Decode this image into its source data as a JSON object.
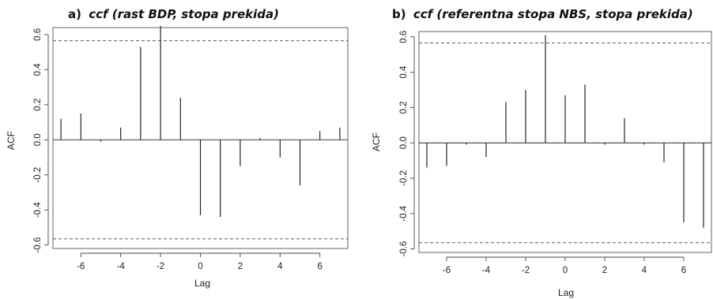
{
  "chart_data": [
    {
      "type": "bar",
      "panel": "a)",
      "title": "ccf (rast BDP, stopa prekida)",
      "xlabel": "Lag",
      "ylabel": "ACF",
      "xlim": [
        -7.4,
        7.4
      ],
      "ylim": [
        -0.62,
        0.64
      ],
      "xticks": [
        -6,
        -4,
        -2,
        0,
        2,
        4,
        6
      ],
      "xtick_labels": [
        "-6",
        "-4",
        "-2",
        "0",
        "2",
        "4",
        "6"
      ],
      "yticks": [
        -0.6,
        -0.4,
        -0.2,
        0.0,
        0.2,
        0.4,
        0.6
      ],
      "ytick_labels": [
        "-0.6",
        "-0.4",
        "-0.2",
        "0.0",
        "0.2",
        "0.4",
        "0.6"
      ],
      "confidence_bounds": [
        0.565,
        -0.565
      ],
      "x": [
        -7,
        -6,
        -5,
        -4,
        -3,
        -2,
        -1,
        0,
        1,
        2,
        3,
        4,
        5,
        6,
        7
      ],
      "values": [
        0.12,
        0.15,
        -0.01,
        0.07,
        0.53,
        0.65,
        0.24,
        -0.43,
        -0.44,
        -0.15,
        0.01,
        -0.1,
        -0.26,
        0.05,
        0.07
      ]
    },
    {
      "type": "bar",
      "panel": "b)",
      "title": "ccf (referentna stopa NBS, stopa prekida)",
      "xlabel": "Lag",
      "ylabel": "ACF",
      "xlim": [
        -7.4,
        7.4
      ],
      "ylim": [
        -0.62,
        0.63
      ],
      "xticks": [
        -6,
        -4,
        -2,
        0,
        2,
        4,
        6
      ],
      "xtick_labels": [
        "-6",
        "-4",
        "-2",
        "0",
        "2",
        "4",
        "6"
      ],
      "yticks": [
        -0.6,
        -0.4,
        -0.2,
        0.0,
        0.2,
        0.4,
        0.6
      ],
      "ytick_labels": [
        "-0.6",
        "-0.4",
        "-0.2",
        "0.0",
        "0.2",
        "0.4",
        "0.6"
      ],
      "confidence_bounds": [
        0.565,
        -0.565
      ],
      "x": [
        -7,
        -6,
        -5,
        -4,
        -3,
        -2,
        -1,
        0,
        1,
        2,
        3,
        4,
        5,
        6,
        7
      ],
      "values": [
        -0.14,
        -0.13,
        -0.01,
        -0.08,
        0.23,
        0.3,
        0.61,
        0.27,
        0.33,
        -0.01,
        0.14,
        -0.01,
        -0.11,
        -0.45,
        -0.48
      ]
    }
  ]
}
